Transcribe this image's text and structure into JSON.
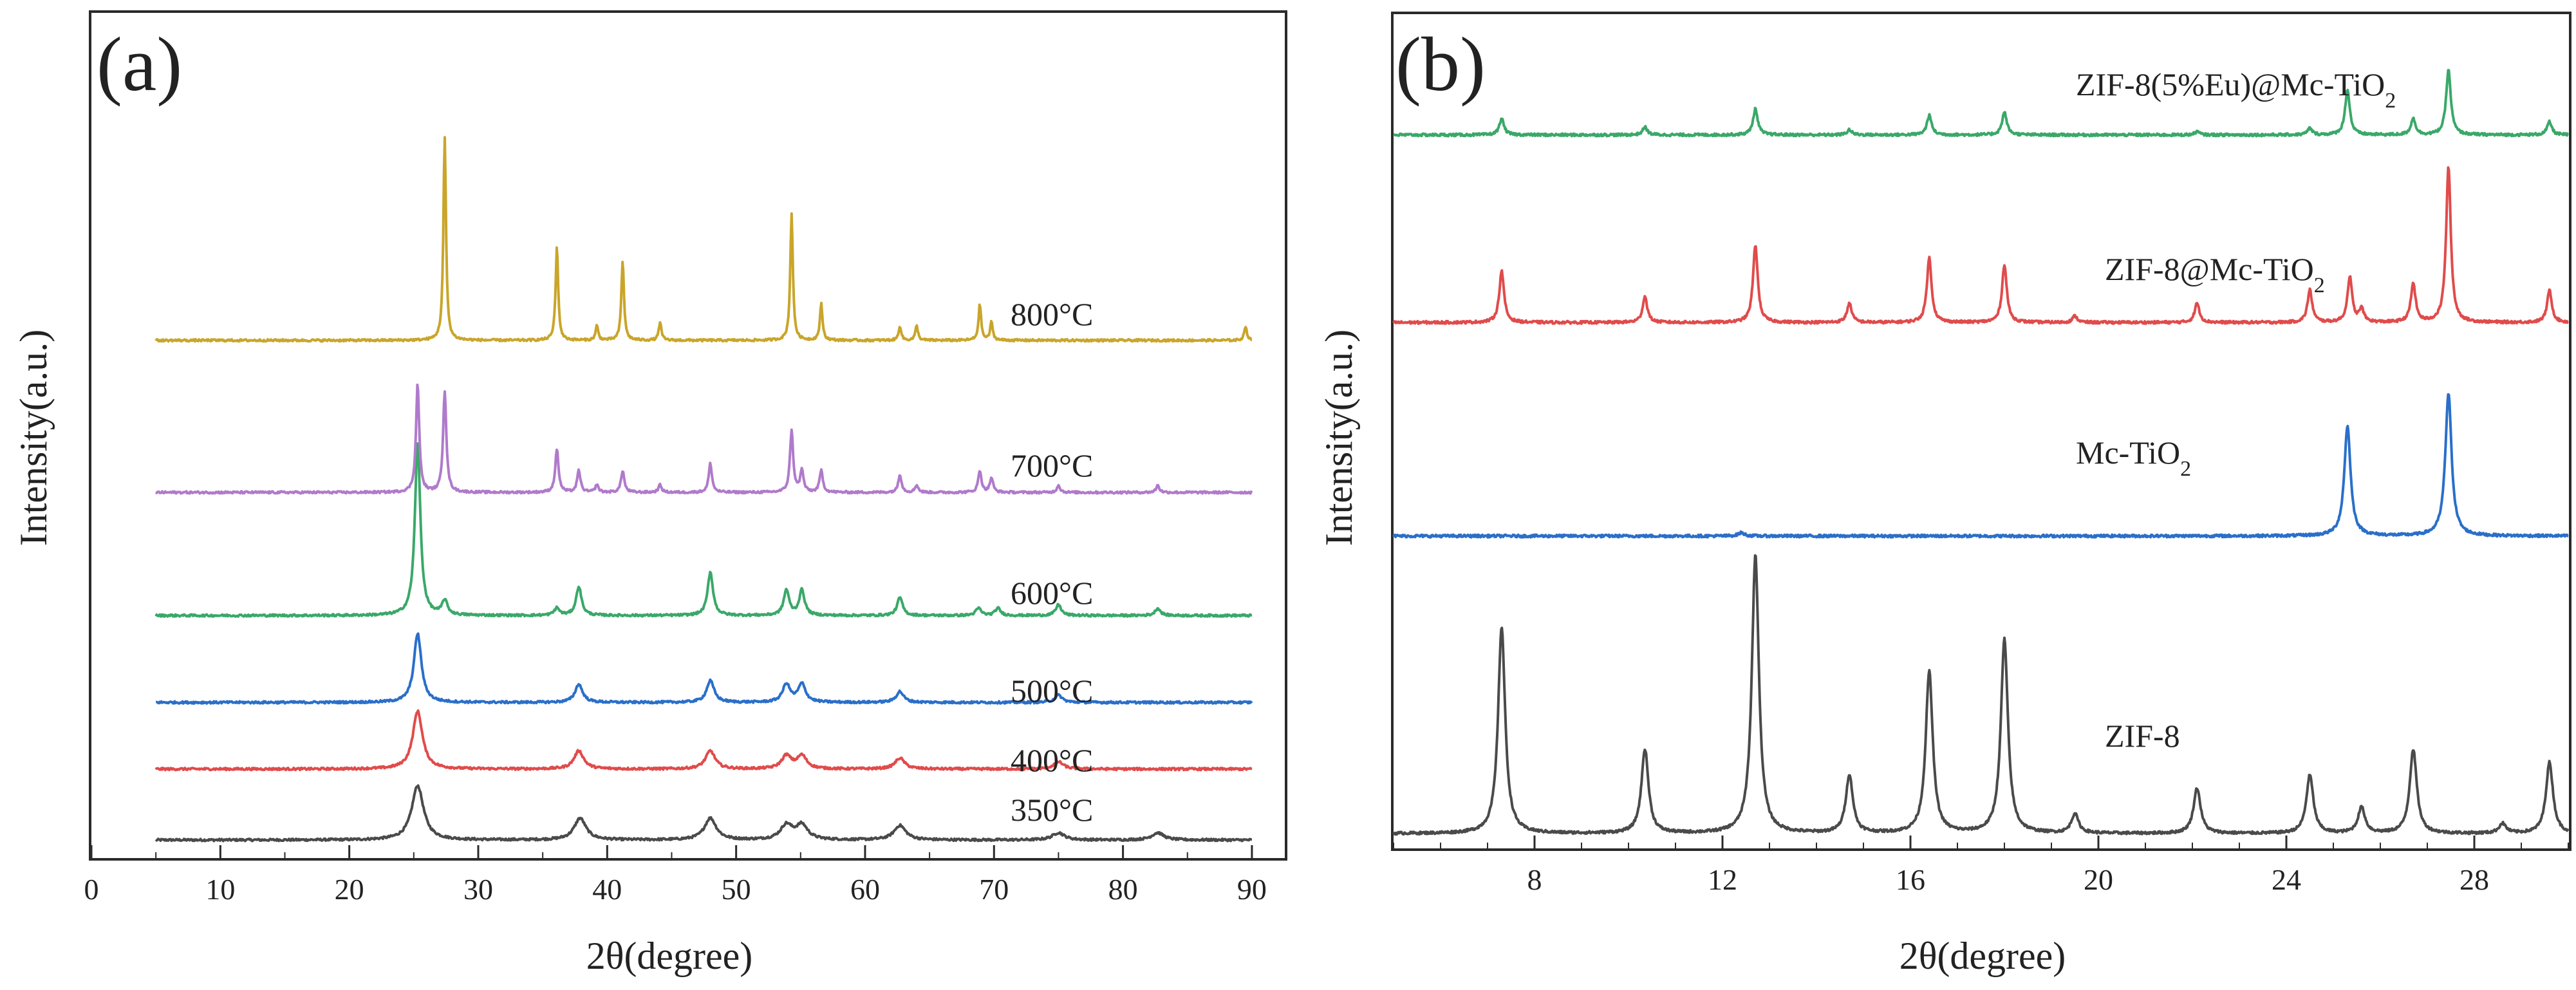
{
  "chart_data": [
    {
      "type": "line",
      "panel_label": "(a)",
      "xlabel": "2θ(degree)",
      "ylabel": "Intensity(a.u.)",
      "xlim": [
        0,
        92
      ],
      "xticks": [
        "0",
        "10",
        "20",
        "30",
        "40",
        "50",
        "60",
        "70",
        "80",
        "90"
      ],
      "yticks_shown": false,
      "colors": {
        "350": "#4a4a4a",
        "400": "#e04b4b",
        "500": "#2a6fc9",
        "600": "#3aa869",
        "700": "#b07acb",
        "800": "#c9a52a"
      },
      "series": [
        {
          "name": "350°C",
          "key": "350",
          "baseline": 0.0,
          "peaks": [
            [
              25.3,
              0.075
            ],
            [
              37.9,
              0.03
            ],
            [
              48.0,
              0.03
            ],
            [
              53.9,
              0.02
            ],
            [
              55.1,
              0.02
            ],
            [
              62.7,
              0.02
            ],
            [
              75.0,
              0.01
            ],
            [
              82.7,
              0.01
            ]
          ],
          "width": 0.55
        },
        {
          "name": "400°C",
          "key": "400",
          "baseline": 0.098,
          "peaks": [
            [
              25.3,
              0.08
            ],
            [
              37.8,
              0.025
            ],
            [
              48.0,
              0.025
            ],
            [
              53.9,
              0.018
            ],
            [
              55.1,
              0.018
            ],
            [
              62.7,
              0.015
            ],
            [
              75.0,
              0.01
            ]
          ],
          "width": 0.45
        },
        {
          "name": "500°C",
          "key": "500",
          "baseline": 0.19,
          "peaks": [
            [
              25.3,
              0.095
            ],
            [
              37.8,
              0.025
            ],
            [
              48.0,
              0.03
            ],
            [
              53.9,
              0.025
            ],
            [
              55.1,
              0.025
            ],
            [
              62.7,
              0.015
            ],
            [
              75.0,
              0.01
            ]
          ],
          "width": 0.35
        },
        {
          "name": "600°C",
          "key": "600",
          "baseline": 0.31,
          "peaks": [
            [
              25.3,
              0.24
            ],
            [
              27.4,
              0.02
            ],
            [
              36.1,
              0.01
            ],
            [
              37.8,
              0.04
            ],
            [
              48.0,
              0.06
            ],
            [
              53.9,
              0.035
            ],
            [
              55.1,
              0.035
            ],
            [
              62.7,
              0.025
            ],
            [
              68.8,
              0.01
            ],
            [
              70.3,
              0.01
            ],
            [
              75.0,
              0.015
            ],
            [
              82.7,
              0.01
            ]
          ],
          "width": 0.25
        },
        {
          "name": "700°C",
          "key": "700",
          "baseline": 0.48,
          "peaks": [
            [
              25.3,
              0.15
            ],
            [
              27.4,
              0.14
            ],
            [
              36.1,
              0.06
            ],
            [
              37.8,
              0.03
            ],
            [
              39.2,
              0.01
            ],
            [
              41.2,
              0.03
            ],
            [
              44.1,
              0.01
            ],
            [
              48.0,
              0.04
            ],
            [
              54.3,
              0.085
            ],
            [
              55.1,
              0.03
            ],
            [
              56.6,
              0.03
            ],
            [
              62.7,
              0.025
            ],
            [
              64.0,
              0.01
            ],
            [
              68.9,
              0.03
            ],
            [
              69.8,
              0.02
            ],
            [
              75.0,
              0.01
            ],
            [
              82.7,
              0.01
            ]
          ],
          "width": 0.15
        },
        {
          "name": "800°C",
          "key": "800",
          "baseline": 0.69,
          "peaks": [
            [
              27.4,
              0.28
            ],
            [
              36.1,
              0.13
            ],
            [
              39.2,
              0.02
            ],
            [
              41.2,
              0.11
            ],
            [
              44.1,
              0.025
            ],
            [
              54.3,
              0.175
            ],
            [
              56.6,
              0.05
            ],
            [
              62.7,
              0.02
            ],
            [
              64.0,
              0.02
            ],
            [
              68.9,
              0.05
            ],
            [
              69.8,
              0.025
            ],
            [
              89.5,
              0.02
            ]
          ],
          "width": 0.12
        }
      ]
    },
    {
      "type": "line",
      "panel_label": "(b)",
      "xlabel": "2θ(degree)",
      "ylabel": "Intensity(a.u.)",
      "xlim": [
        5,
        30
      ],
      "xticks": [
        "8",
        "12",
        "16",
        "20",
        "24",
        "28"
      ],
      "yticks_shown": false,
      "colors": {
        "zif8": "#4a4a4a",
        "mctio2": "#2a6fc9",
        "zif8_mc": "#e04b4b",
        "zif8_eu": "#3aa869"
      },
      "series": [
        {
          "name": "ZIF-8",
          "key": "zif8",
          "baseline": 0.0,
          "peaks": [
            [
              7.3,
              0.32
            ],
            [
              10.35,
              0.13
            ],
            [
              12.7,
              0.43
            ],
            [
              14.7,
              0.09
            ],
            [
              16.4,
              0.25
            ],
            [
              18.0,
              0.3
            ],
            [
              19.5,
              0.03
            ],
            [
              22.1,
              0.07
            ],
            [
              24.5,
              0.09
            ],
            [
              25.6,
              0.04
            ],
            [
              26.7,
              0.13
            ],
            [
              28.6,
              0.015
            ],
            [
              29.6,
              0.11
            ]
          ],
          "width": 0.09
        },
        {
          "name_prefix": "Mc-TiO",
          "name_sub": "2",
          "key": "mctio2",
          "baseline": 0.46,
          "peaks": [
            [
              25.3,
              0.17
            ],
            [
              27.45,
              0.22
            ],
            [
              12.4,
              0.005
            ]
          ],
          "width": 0.08
        },
        {
          "name_prefix": "ZIF-8@Mc-TiO",
          "name_sub": "2",
          "key": "zif8_mc",
          "baseline": 0.79,
          "peaks": [
            [
              7.3,
              0.08
            ],
            [
              10.35,
              0.04
            ],
            [
              12.7,
              0.12
            ],
            [
              14.7,
              0.03
            ],
            [
              16.4,
              0.1
            ],
            [
              18.0,
              0.09
            ],
            [
              19.5,
              0.01
            ],
            [
              22.1,
              0.03
            ],
            [
              24.5,
              0.05
            ],
            [
              25.35,
              0.07
            ],
            [
              25.6,
              0.02
            ],
            [
              26.7,
              0.06
            ],
            [
              27.45,
              0.24
            ],
            [
              29.6,
              0.05
            ]
          ],
          "width": 0.06
        },
        {
          "name_prefix": "ZIF-8(5%Eu)@Mc-TiO",
          "name_sub": "2",
          "key": "zif8_eu",
          "baseline": 1.08,
          "peaks": [
            [
              7.3,
              0.025
            ],
            [
              10.35,
              0.012
            ],
            [
              12.7,
              0.04
            ],
            [
              14.7,
              0.008
            ],
            [
              16.4,
              0.03
            ],
            [
              18.0,
              0.035
            ],
            [
              22.1,
              0.005
            ],
            [
              24.5,
              0.01
            ],
            [
              25.3,
              0.07
            ],
            [
              26.7,
              0.025
            ],
            [
              27.45,
              0.1
            ],
            [
              29.6,
              0.02
            ]
          ],
          "width": 0.06
        }
      ]
    }
  ]
}
